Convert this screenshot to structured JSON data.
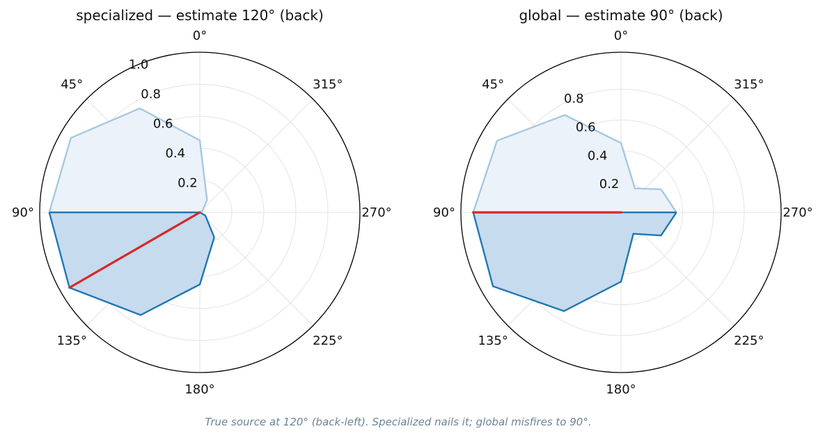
{
  "caption": "True source at 120° (back-left). Specialized nails it; global misfires to 90°.",
  "colors": {
    "front_line": "#a6c8e0",
    "back_line": "#1f77b4",
    "front_fill": "#ecf2f9",
    "back_fill": "#c6dbed",
    "estimate": "#d62728",
    "grid": "#e3e3e3"
  },
  "chart_data": [
    {
      "type": "polar",
      "title": "specialized — estimate 120° (back)",
      "theta_direction": "counterclockwise",
      "theta_zero": "top",
      "angles": [
        0,
        30,
        60,
        90,
        120,
        150,
        180,
        210,
        240,
        270,
        300,
        330
      ],
      "values": [
        0.45,
        0.75,
        0.93,
        0.94,
        0.94,
        0.74,
        0.45,
        0.18,
        0.04,
        0.0,
        0.02,
        0.09
      ],
      "front_region": "0°–90° (light)",
      "back_region": "90°–270° (dark)",
      "estimate_angle": 120,
      "estimate_value": 0.94,
      "rlim": [
        0,
        1.0
      ],
      "rticks": [
        "0.2",
        "0.4",
        "0.6",
        "0.8",
        "1.0"
      ],
      "theta_ticks": [
        "0°",
        "45°",
        "90°",
        "135°",
        "180°",
        "225°",
        "270°",
        "315°"
      ],
      "grid": true
    },
    {
      "type": "polar",
      "title": "global — estimate 90° (back)",
      "theta_direction": "counterclockwise",
      "theta_zero": "top",
      "angles": [
        0,
        30,
        60,
        90,
        120,
        150,
        180,
        210,
        240,
        270,
        300,
        330
      ],
      "values": [
        0.45,
        0.73,
        0.93,
        0.96,
        0.96,
        0.74,
        0.45,
        0.16,
        0.3,
        0.36,
        0.3,
        0.18
      ],
      "front_region": "0°–90° (light)",
      "back_region": "90°–270° (dark)",
      "estimate_angle": 90,
      "estimate_value": 0.96,
      "rlim": [
        0,
        1.04
      ],
      "rticks": [
        "0.2",
        "0.4",
        "0.6",
        "0.8"
      ],
      "theta_ticks": [
        "0°",
        "45°",
        "90°",
        "135°",
        "180°",
        "225°",
        "270°",
        "315°"
      ],
      "grid": true
    }
  ]
}
